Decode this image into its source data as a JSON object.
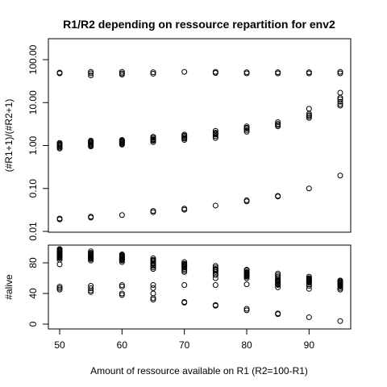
{
  "chart_data": {
    "title": "R1/R2 depending on ressource repartition for env2",
    "xlabel": "Amount of ressource available on R1 (R2=100-R1)",
    "x_ticks": [
      "50",
      "60",
      "70",
      "80",
      "90"
    ],
    "x_values": [
      50,
      55,
      60,
      65,
      70,
      75,
      80,
      85,
      90,
      95
    ],
    "panels": [
      {
        "type": "scatter",
        "ylabel": "(#R1+1)/(#R2+1)",
        "scale": "log",
        "ylim": [
          0.01,
          100
        ],
        "y_ticks": [
          "0.01",
          "0.10",
          "1.00",
          "10.00",
          "100.00"
        ],
        "series": [
          {
            "points": [
              [
                50,
                50
              ],
              [
                50,
                48
              ],
              [
                55,
                52
              ],
              [
                55,
                48
              ],
              [
                55,
                43
              ],
              [
                60,
                52
              ],
              [
                60,
                48
              ],
              [
                60,
                45
              ],
              [
                65,
                51
              ],
              [
                65,
                47
              ],
              [
                70,
                52
              ],
              [
                75,
                52
              ],
              [
                75,
                49
              ],
              [
                80,
                51
              ],
              [
                80,
                48
              ],
              [
                85,
                51
              ],
              [
                85,
                48
              ],
              [
                90,
                51
              ],
              [
                90,
                48
              ],
              [
                95,
                52
              ],
              [
                95,
                48
              ]
            ]
          },
          {
            "points": [
              [
                50,
                0.85
              ],
              [
                50,
                0.9
              ],
              [
                50,
                0.95
              ],
              [
                50,
                1.0
              ],
              [
                50,
                1.05
              ],
              [
                50,
                1.1
              ],
              [
                50,
                1.15
              ],
              [
                55,
                0.95
              ],
              [
                55,
                1.0
              ],
              [
                55,
                1.05
              ],
              [
                55,
                1.1
              ],
              [
                55,
                1.15
              ],
              [
                55,
                1.2
              ],
              [
                55,
                1.25
              ],
              [
                55,
                1.3
              ],
              [
                60,
                1.05
              ],
              [
                60,
                1.1
              ],
              [
                60,
                1.15
              ],
              [
                60,
                1.2
              ],
              [
                60,
                1.25
              ],
              [
                60,
                1.3
              ],
              [
                60,
                1.35
              ],
              [
                65,
                1.2
              ],
              [
                65,
                1.3
              ],
              [
                65,
                1.35
              ],
              [
                65,
                1.4
              ],
              [
                65,
                1.5
              ],
              [
                65,
                1.6
              ],
              [
                70,
                1.35
              ],
              [
                70,
                1.45
              ],
              [
                70,
                1.5
              ],
              [
                70,
                1.6
              ],
              [
                70,
                1.7
              ],
              [
                70,
                1.8
              ],
              [
                75,
                1.5
              ],
              [
                75,
                1.65
              ],
              [
                75,
                1.8
              ],
              [
                75,
                1.9
              ],
              [
                75,
                2.0
              ],
              [
                75,
                2.2
              ],
              [
                80,
                2.1
              ],
              [
                80,
                2.3
              ],
              [
                80,
                2.5
              ],
              [
                80,
                2.6
              ],
              [
                80,
                2.8
              ],
              [
                85,
                2.8
              ],
              [
                85,
                3.0
              ],
              [
                85,
                3.2
              ],
              [
                85,
                3.5
              ],
              [
                90,
                4.4
              ],
              [
                90,
                4.8
              ],
              [
                90,
                5.1
              ],
              [
                90,
                5.5
              ],
              [
                90,
                7.2
              ],
              [
                95,
                8.5
              ],
              [
                95,
                9.2
              ],
              [
                95,
                10.5
              ],
              [
                95,
                12.0
              ],
              [
                95,
                13.0
              ],
              [
                95,
                17.0
              ]
            ]
          },
          {
            "points": [
              [
                50,
                0.019
              ],
              [
                50,
                0.02
              ],
              [
                55,
                0.021
              ],
              [
                55,
                0.022
              ],
              [
                60,
                0.024
              ],
              [
                65,
                0.028
              ],
              [
                65,
                0.03
              ],
              [
                70,
                0.032
              ],
              [
                70,
                0.034
              ],
              [
                75,
                0.04
              ],
              [
                80,
                0.05
              ],
              [
                80,
                0.053
              ],
              [
                85,
                0.065
              ],
              [
                85,
                0.067
              ],
              [
                90,
                0.1
              ],
              [
                95,
                0.2
              ]
            ]
          }
        ]
      },
      {
        "type": "scatter",
        "ylabel": "#alive",
        "scale": "linear",
        "ylim": [
          0,
          100
        ],
        "y_ticks": [
          "0",
          "40",
          "80"
        ],
        "series": [
          {
            "points": [
              [
                50,
                98
              ],
              [
                50,
                97
              ],
              [
                50,
                96
              ],
              [
                50,
                95
              ],
              [
                50,
                94
              ],
              [
                50,
                93
              ],
              [
                50,
                92
              ],
              [
                50,
                91
              ],
              [
                50,
                90
              ],
              [
                50,
                89
              ],
              [
                50,
                88
              ],
              [
                50,
                87
              ],
              [
                50,
                86
              ],
              [
                50,
                84
              ],
              [
                50,
                78
              ],
              [
                55,
                95
              ],
              [
                55,
                93
              ],
              [
                55,
                92
              ],
              [
                55,
                91
              ],
              [
                55,
                90
              ],
              [
                55,
                89
              ],
              [
                55,
                88
              ],
              [
                55,
                87
              ],
              [
                55,
                86
              ],
              [
                55,
                85
              ],
              [
                55,
                83
              ],
              [
                60,
                91
              ],
              [
                60,
                90
              ],
              [
                60,
                89
              ],
              [
                60,
                88
              ],
              [
                60,
                87
              ],
              [
                60,
                86
              ],
              [
                60,
                85
              ],
              [
                60,
                84
              ],
              [
                60,
                83
              ],
              [
                60,
                81
              ],
              [
                65,
                86
              ],
              [
                65,
                84
              ],
              [
                65,
                83
              ],
              [
                65,
                82
              ],
              [
                65,
                80
              ],
              [
                65,
                79
              ],
              [
                65,
                77
              ],
              [
                65,
                76
              ],
              [
                65,
                74
              ],
              [
                65,
                72
              ],
              [
                70,
                81
              ],
              [
                70,
                79
              ],
              [
                70,
                78
              ],
              [
                70,
                77
              ],
              [
                70,
                76
              ],
              [
                70,
                75
              ],
              [
                70,
                74
              ],
              [
                70,
                72
              ],
              [
                70,
                70
              ],
              [
                70,
                68
              ],
              [
                75,
                76
              ],
              [
                75,
                74
              ],
              [
                75,
                72
              ],
              [
                75,
                71
              ],
              [
                75,
                70
              ],
              [
                75,
                68
              ],
              [
                75,
                66
              ],
              [
                75,
                64
              ],
              [
                75,
                60
              ],
              [
                80,
                71
              ],
              [
                80,
                70
              ],
              [
                80,
                68
              ],
              [
                80,
                67
              ],
              [
                80,
                66
              ],
              [
                80,
                65
              ],
              [
                80,
                64
              ],
              [
                80,
                63
              ],
              [
                80,
                62
              ],
              [
                80,
                60
              ],
              [
                85,
                66
              ],
              [
                85,
                64
              ],
              [
                85,
                62
              ],
              [
                85,
                60
              ],
              [
                85,
                58
              ],
              [
                85,
                57
              ],
              [
                85,
                56
              ],
              [
                85,
                55
              ],
              [
                85,
                53
              ],
              [
                85,
                51
              ],
              [
                90,
                62
              ],
              [
                90,
                60
              ],
              [
                90,
                59
              ],
              [
                90,
                58
              ],
              [
                90,
                57
              ],
              [
                90,
                56
              ],
              [
                90,
                55
              ],
              [
                90,
                54
              ],
              [
                90,
                52
              ],
              [
                90,
                50
              ],
              [
                90,
                46
              ],
              [
                95,
                57
              ],
              [
                95,
                56
              ],
              [
                95,
                55
              ],
              [
                95,
                54
              ],
              [
                95,
                53
              ],
              [
                95,
                52
              ],
              [
                95,
                51
              ],
              [
                95,
                50
              ],
              [
                95,
                49
              ],
              [
                95,
                47
              ],
              [
                95,
                45
              ]
            ]
          },
          {
            "points": [
              [
                50,
                49
              ],
              [
                50,
                47
              ],
              [
                50,
                45
              ],
              [
                55,
                50
              ],
              [
                55,
                47
              ],
              [
                55,
                44
              ],
              [
                55,
                42
              ],
              [
                60,
                51
              ],
              [
                60,
                49
              ],
              [
                60,
                40
              ],
              [
                60,
                38
              ],
              [
                65,
                51
              ],
              [
                65,
                47
              ],
              [
                65,
                40
              ],
              [
                70,
                51
              ],
              [
                75,
                51
              ],
              [
                80,
                52
              ],
              [
                85,
                52
              ],
              [
                85,
                48
              ]
            ]
          },
          {
            "points": [
              [
                65,
                34
              ],
              [
                65,
                32
              ],
              [
                70,
                29
              ],
              [
                70,
                28
              ],
              [
                75,
                25
              ],
              [
                75,
                24
              ],
              [
                80,
                20
              ],
              [
                80,
                18
              ],
              [
                85,
                14
              ],
              [
                85,
                13
              ],
              [
                90,
                9
              ],
              [
                95,
                4
              ]
            ]
          }
        ]
      }
    ]
  }
}
